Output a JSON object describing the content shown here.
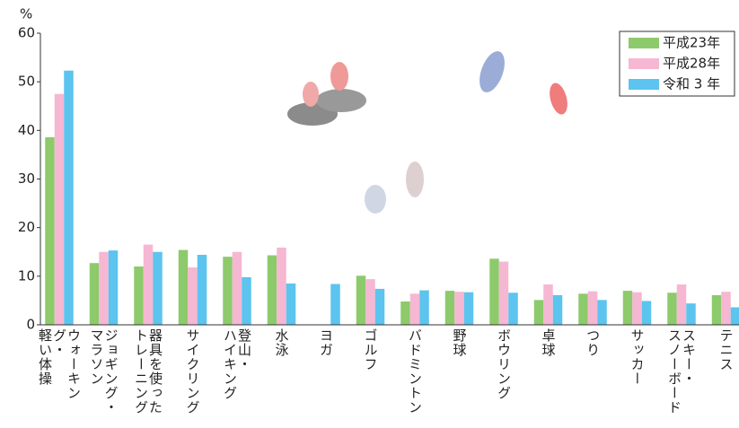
{
  "chart_data": {
    "type": "bar",
    "y_unit": "%",
    "categories": [
      "ウォーキング・\n軽い体操",
      "ジョギング・\nマラソン",
      "器具を使った\nトレーニング",
      "サイクリング",
      "登山・\nハイキング",
      "水泳",
      "ヨガ",
      "ゴルフ",
      "バドミントン",
      "野球",
      "ボウリング",
      "卓球",
      "つり",
      "サッカー",
      "スキー・\nスノーボード",
      "テニス"
    ],
    "series": [
      {
        "name": "平成23年",
        "color": "#8dca6b",
        "values": [
          38.6,
          12.7,
          12.0,
          15.4,
          14.0,
          14.3,
          null,
          10.1,
          4.8,
          7.0,
          13.6,
          5.1,
          6.4,
          7.0,
          6.6,
          6.1
        ]
      },
      {
        "name": "平成28年",
        "color": "#f6b7d3",
        "values": [
          47.5,
          15.0,
          16.5,
          11.8,
          15.0,
          15.9,
          null,
          9.4,
          6.4,
          6.8,
          13.0,
          8.3,
          6.9,
          6.7,
          8.3,
          6.8
        ]
      },
      {
        "name": "令和 3 年",
        "color": "#5cc4ee",
        "values": [
          52.3,
          15.3,
          15.0,
          14.4,
          9.8,
          8.5,
          8.4,
          7.4,
          7.1,
          6.7,
          6.6,
          6.1,
          5.1,
          4.9,
          4.4,
          3.6
        ]
      }
    ],
    "ylim": [
      0,
      60
    ],
    "yticks": [
      0,
      10,
      20,
      30,
      40,
      50,
      60
    ],
    "legend": "top-right"
  }
}
